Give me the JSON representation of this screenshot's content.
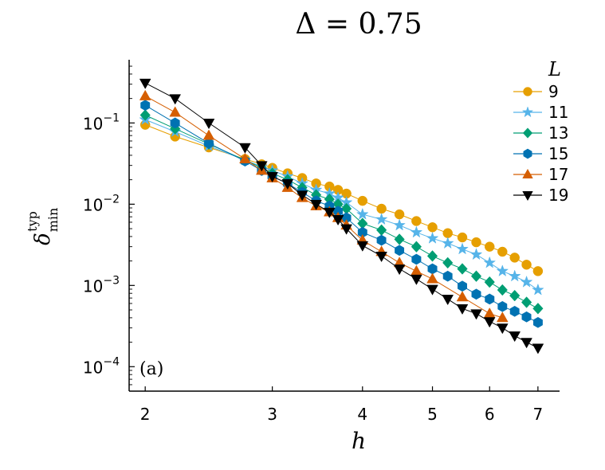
{
  "chart_data": {
    "type": "scatter",
    "title": "Δ = 0.75",
    "panel_label": "(a)",
    "xlabel": "h",
    "ylabel": {
      "base": "δ",
      "superscript": "typ",
      "subscript": "min"
    },
    "xscale": "log",
    "yscale": "log",
    "xlim": [
      1.9,
      7.5
    ],
    "ylim": [
      5e-05,
      0.6
    ],
    "x_ticks": [
      {
        "value": 2,
        "label": "2"
      },
      {
        "value": 3,
        "label": "3"
      },
      {
        "value": 4,
        "label": "4"
      },
      {
        "value": 5,
        "label": "5"
      },
      {
        "value": 6,
        "label": "6"
      },
      {
        "value": 7,
        "label": "7"
      }
    ],
    "y_ticks": [
      {
        "value": 0.1,
        "base": "10",
        "exp": "−1"
      },
      {
        "value": 0.01,
        "base": "10",
        "exp": "−2"
      },
      {
        "value": 0.001,
        "base": "10",
        "exp": "−3"
      },
      {
        "value": 0.0001,
        "base": "10",
        "exp": "−4"
      }
    ],
    "legend_title": "L",
    "legend_position": "top-right",
    "series": [
      {
        "name": "9",
        "color": "#E69F00",
        "marker": "circle",
        "x": [
          2.0,
          2.2,
          2.45,
          2.75,
          2.9,
          3.0,
          3.15,
          3.3,
          3.45,
          3.6,
          3.7,
          3.8,
          4.0,
          4.25,
          4.5,
          4.75,
          5.0,
          5.25,
          5.5,
          5.75,
          6.0,
          6.25,
          6.5,
          6.75,
          7.0
        ],
        "y": [
          0.095,
          0.068,
          0.05,
          0.036,
          0.031,
          0.028,
          0.024,
          0.021,
          0.018,
          0.0165,
          0.015,
          0.0135,
          0.011,
          0.0088,
          0.0075,
          0.0062,
          0.0052,
          0.0044,
          0.0039,
          0.0034,
          0.003,
          0.0026,
          0.0022,
          0.0018,
          0.0015
        ]
      },
      {
        "name": "11",
        "color": "#56B4E9",
        "marker": "star",
        "x": [
          2.0,
          2.2,
          2.45,
          2.75,
          2.9,
          3.0,
          3.15,
          3.3,
          3.45,
          3.6,
          3.7,
          3.8,
          4.0,
          4.25,
          4.5,
          4.75,
          5.0,
          5.25,
          5.5,
          5.75,
          6.0,
          6.25,
          6.5,
          6.75,
          7.0
        ],
        "y": [
          0.11,
          0.078,
          0.052,
          0.035,
          0.029,
          0.026,
          0.022,
          0.018,
          0.015,
          0.0135,
          0.012,
          0.0105,
          0.0075,
          0.0065,
          0.0055,
          0.0045,
          0.0038,
          0.0033,
          0.0028,
          0.0024,
          0.0019,
          0.0015,
          0.0013,
          0.0011,
          0.00088
        ]
      },
      {
        "name": "13",
        "color": "#009E73",
        "marker": "diamond",
        "x": [
          2.0,
          2.2,
          2.45,
          2.75,
          2.9,
          3.0,
          3.15,
          3.3,
          3.45,
          3.6,
          3.7,
          3.8,
          4.0,
          4.25,
          4.5,
          4.75,
          5.0,
          5.25,
          5.5,
          5.75,
          6.0,
          6.25,
          6.5,
          6.75,
          7.0
        ],
        "y": [
          0.125,
          0.085,
          0.055,
          0.035,
          0.028,
          0.024,
          0.02,
          0.016,
          0.013,
          0.0115,
          0.01,
          0.0088,
          0.0058,
          0.0048,
          0.0037,
          0.003,
          0.0023,
          0.0019,
          0.0016,
          0.0013,
          0.0011,
          0.00088,
          0.00075,
          0.00062,
          0.00052
        ]
      },
      {
        "name": "15",
        "color": "#0072B2",
        "marker": "hexagon",
        "x": [
          2.0,
          2.2,
          2.45,
          2.75,
          2.9,
          3.0,
          3.15,
          3.3,
          3.45,
          3.6,
          3.7,
          3.8,
          4.0,
          4.25,
          4.5,
          4.75,
          5.0,
          5.25,
          5.5,
          5.75,
          6.0,
          6.25,
          6.5,
          6.75,
          7.0
        ],
        "y": [
          0.165,
          0.1,
          0.056,
          0.034,
          0.026,
          0.022,
          0.018,
          0.014,
          0.011,
          0.0095,
          0.0082,
          0.0068,
          0.0045,
          0.0036,
          0.0027,
          0.0021,
          0.0016,
          0.0013,
          0.00098,
          0.00078,
          0.00068,
          0.00055,
          0.00048,
          0.00041,
          0.00035
        ]
      },
      {
        "name": "17",
        "color": "#D55E00",
        "marker": "triangle-up",
        "x": [
          2.0,
          2.2,
          2.45,
          2.75,
          2.9,
          3.0,
          3.15,
          3.3,
          3.45,
          3.6,
          3.7,
          3.8,
          4.0,
          4.25,
          4.5,
          4.75,
          5.0,
          5.5,
          6.0,
          6.25
        ],
        "y": [
          0.215,
          0.135,
          0.07,
          0.036,
          0.026,
          0.021,
          0.016,
          0.012,
          0.0095,
          0.008,
          0.0068,
          0.0055,
          0.0036,
          0.0026,
          0.0019,
          0.0015,
          0.0012,
          0.00072,
          0.00045,
          0.0004
        ]
      },
      {
        "name": "19",
        "color": "#000000",
        "marker": "triangle-down",
        "x": [
          2.0,
          2.2,
          2.45,
          2.75,
          2.9,
          3.0,
          3.15,
          3.3,
          3.45,
          3.6,
          3.7,
          3.8,
          4.0,
          4.25,
          4.5,
          4.75,
          5.0,
          5.25,
          5.5,
          5.75,
          6.0,
          6.25,
          6.5,
          6.75,
          7.0
        ],
        "y": [
          0.31,
          0.2,
          0.1,
          0.05,
          0.03,
          0.022,
          0.018,
          0.013,
          0.01,
          0.008,
          0.0065,
          0.005,
          0.0031,
          0.0023,
          0.0016,
          0.0012,
          0.0009,
          0.00068,
          0.00052,
          0.00045,
          0.00036,
          0.0003,
          0.00024,
          0.0002,
          0.00017
        ]
      }
    ]
  }
}
